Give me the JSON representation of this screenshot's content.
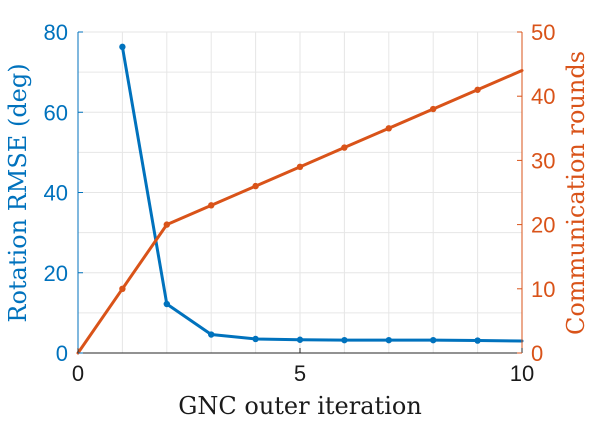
{
  "chart_data": {
    "type": "line",
    "xlabel": "GNC outer iteration",
    "xlim": [
      0,
      10
    ],
    "xticks": [
      0,
      5,
      10
    ],
    "ylabel_left": "Rotation RMSE (deg)",
    "ylim_left": [
      0,
      80
    ],
    "yticks_left": [
      0,
      20,
      40,
      60,
      80
    ],
    "ylabel_right": "Communication rounds",
    "ylim_right": [
      0,
      50
    ],
    "yticks_right": [
      0,
      10,
      20,
      30,
      40,
      50
    ],
    "grid": true,
    "series": [
      {
        "axis": "left",
        "color": "#0072BD",
        "x": [
          1,
          2,
          3,
          4,
          5,
          6,
          7,
          8,
          9,
          10
        ],
        "y": [
          76.3,
          12.2,
          4.6,
          3.5,
          3.3,
          3.2,
          3.2,
          3.2,
          3.1,
          3.0
        ],
        "markers_at": [
          1,
          2,
          3,
          4,
          5,
          6,
          7,
          8,
          9
        ]
      },
      {
        "axis": "right",
        "color": "#D95319",
        "x": [
          0,
          1,
          2,
          3,
          4,
          5,
          6,
          7,
          8,
          9,
          10
        ],
        "y": [
          0,
          10,
          20,
          23,
          26,
          29,
          32,
          35,
          38,
          41,
          44
        ],
        "markers_at": [
          1,
          2,
          3,
          4,
          5,
          6,
          7,
          8,
          9
        ]
      }
    ]
  }
}
